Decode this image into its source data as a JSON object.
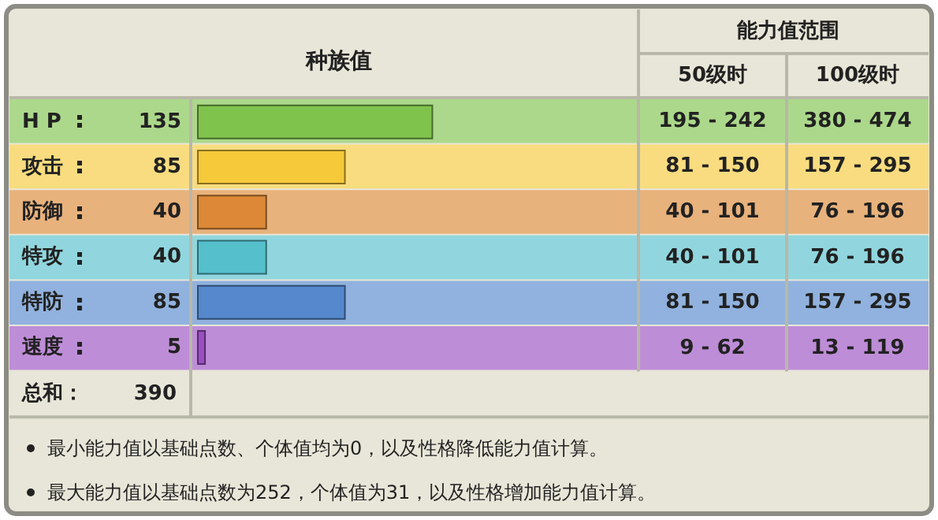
{
  "chart_data": {
    "type": "bar",
    "orientation": "horizontal",
    "title": "种族值",
    "categories": [
      "H P",
      "攻击",
      "防御",
      "特攻",
      "特防",
      "速度"
    ],
    "values": [
      135,
      85,
      40,
      40,
      85,
      5
    ],
    "colors": [
      "#80c34c",
      "#f6c93a",
      "#dc8836",
      "#55c0cc",
      "#5588cc",
      "#9b4fc2"
    ],
    "data_labels": true,
    "annotations": [
      "能力值范围",
      "50级时",
      "100级时",
      "总和：",
      "390",
      "最小能力值以基础点数、个体值均为0，以及性格降低能力值计算。",
      "最大能力值以基础点数为252，个体值为31，以及性格增加能力值计算。",
      "195 - 242",
      "380 - 474",
      "81 - 150",
      "157 - 295",
      "40 - 101",
      "76 - 196",
      "40 - 101",
      "76 - 196",
      "81 - 150",
      "157 - 295",
      "9 - 62",
      "13 - 119"
    ]
  }
}
